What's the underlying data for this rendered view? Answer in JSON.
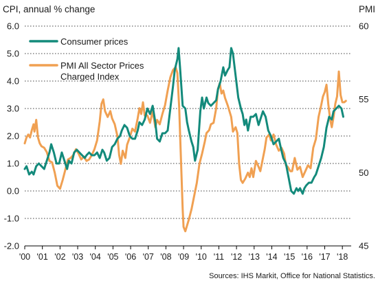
{
  "chart_data": {
    "type": "line",
    "left_axis_title": "CPI, annual % change",
    "right_axis_title": "PMI",
    "left_axis": {
      "ylim": [
        -2.0,
        6.0
      ],
      "ticks": [
        6.0,
        5.0,
        4.0,
        3.0,
        2.0,
        1.0,
        0.0,
        -1.0,
        -2.0
      ],
      "tick_labels": [
        "6.0",
        "5.0",
        "4.0",
        "3.0",
        "2.0",
        "1.0",
        "0.0",
        "-1.0",
        "-2.0"
      ]
    },
    "right_axis": {
      "ylim": [
        45,
        60
      ],
      "ticks": [
        60,
        55,
        50,
        45
      ],
      "tick_labels": [
        "60",
        "55",
        "50",
        "45"
      ]
    },
    "x_axis": {
      "range": [
        2000.0,
        2018.5
      ],
      "tick_years": [
        2000,
        2001,
        2002,
        2003,
        2004,
        2005,
        2006,
        2007,
        2008,
        2009,
        2010,
        2011,
        2012,
        2013,
        2014,
        2015,
        2016,
        2017,
        2018
      ],
      "tick_labels": [
        "'00",
        "'01",
        "'02",
        "'03",
        "'04",
        "'05",
        "'06",
        "'07",
        "'08",
        "'09",
        "'10",
        "'11",
        "'12",
        "'13",
        "'14",
        "'15",
        "'16",
        "'17",
        "'18"
      ]
    },
    "grid": true,
    "legend_position": "top-left",
    "series": [
      {
        "name": "Consumer prices",
        "axis": "left",
        "color": "#138a7b",
        "points": [
          [
            2000.0,
            0.8
          ],
          [
            2000.1,
            0.9
          ],
          [
            2000.25,
            0.6
          ],
          [
            2000.4,
            0.7
          ],
          [
            2000.5,
            0.6
          ],
          [
            2000.65,
            0.9
          ],
          [
            2000.8,
            1.0
          ],
          [
            2000.95,
            0.9
          ],
          [
            2001.1,
            0.8
          ],
          [
            2001.25,
            1.1
          ],
          [
            2001.4,
            1.4
          ],
          [
            2001.5,
            1.7
          ],
          [
            2001.65,
            1.4
          ],
          [
            2001.8,
            1.0
          ],
          [
            2001.95,
            1.0
          ],
          [
            2002.1,
            1.4
          ],
          [
            2002.25,
            1.1
          ],
          [
            2002.4,
            0.8
          ],
          [
            2002.5,
            1.1
          ],
          [
            2002.65,
            1.0
          ],
          [
            2002.8,
            1.4
          ],
          [
            2002.95,
            1.5
          ],
          [
            2003.1,
            1.4
          ],
          [
            2003.25,
            1.3
          ],
          [
            2003.4,
            1.2
          ],
          [
            2003.5,
            1.3
          ],
          [
            2003.65,
            1.4
          ],
          [
            2003.8,
            1.3
          ],
          [
            2003.95,
            1.3
          ],
          [
            2004.1,
            1.4
          ],
          [
            2004.25,
            1.2
          ],
          [
            2004.4,
            1.5
          ],
          [
            2004.5,
            1.4
          ],
          [
            2004.65,
            1.1
          ],
          [
            2004.8,
            1.2
          ],
          [
            2004.95,
            1.6
          ],
          [
            2005.1,
            1.7
          ],
          [
            2005.25,
            1.9
          ],
          [
            2005.4,
            2.0
          ],
          [
            2005.5,
            2.2
          ],
          [
            2005.65,
            2.4
          ],
          [
            2005.8,
            2.3
          ],
          [
            2005.95,
            2.0
          ],
          [
            2006.1,
            1.9
          ],
          [
            2006.25,
            1.9
          ],
          [
            2006.4,
            2.2
          ],
          [
            2006.5,
            2.5
          ],
          [
            2006.65,
            2.4
          ],
          [
            2006.8,
            2.6
          ],
          [
            2006.95,
            3.0
          ],
          [
            2007.1,
            2.8
          ],
          [
            2007.25,
            3.1
          ],
          [
            2007.4,
            2.5
          ],
          [
            2007.5,
            1.9
          ],
          [
            2007.65,
            1.8
          ],
          [
            2007.8,
            2.1
          ],
          [
            2007.95,
            2.1
          ],
          [
            2008.1,
            2.2
          ],
          [
            2008.25,
            3.0
          ],
          [
            2008.4,
            3.8
          ],
          [
            2008.5,
            4.4
          ],
          [
            2008.65,
            4.8
          ],
          [
            2008.72,
            5.2
          ],
          [
            2008.8,
            4.5
          ],
          [
            2008.95,
            3.1
          ],
          [
            2009.1,
            3.0
          ],
          [
            2009.2,
            2.5
          ],
          [
            2009.3,
            2.2
          ],
          [
            2009.45,
            1.8
          ],
          [
            2009.55,
            1.6
          ],
          [
            2009.65,
            1.1
          ],
          [
            2009.8,
            1.5
          ],
          [
            2009.95,
            2.9
          ],
          [
            2010.05,
            3.4
          ],
          [
            2010.15,
            3.0
          ],
          [
            2010.3,
            3.4
          ],
          [
            2010.4,
            3.2
          ],
          [
            2010.55,
            3.1
          ],
          [
            2010.7,
            3.2
          ],
          [
            2010.85,
            3.3
          ],
          [
            2010.95,
            3.7
          ],
          [
            2011.1,
            4.0
          ],
          [
            2011.25,
            4.5
          ],
          [
            2011.35,
            4.2
          ],
          [
            2011.5,
            4.4
          ],
          [
            2011.6,
            4.5
          ],
          [
            2011.7,
            5.2
          ],
          [
            2011.8,
            5.0
          ],
          [
            2011.95,
            4.2
          ],
          [
            2012.1,
            3.4
          ],
          [
            2012.25,
            3.0
          ],
          [
            2012.35,
            2.8
          ],
          [
            2012.45,
            2.4
          ],
          [
            2012.55,
            2.6
          ],
          [
            2012.65,
            2.2
          ],
          [
            2012.8,
            2.7
          ],
          [
            2012.95,
            2.7
          ],
          [
            2013.1,
            2.8
          ],
          [
            2013.25,
            2.4
          ],
          [
            2013.4,
            2.7
          ],
          [
            2013.5,
            2.9
          ],
          [
            2013.65,
            2.7
          ],
          [
            2013.8,
            2.2
          ],
          [
            2013.95,
            2.0
          ],
          [
            2014.1,
            1.7
          ],
          [
            2014.25,
            1.8
          ],
          [
            2014.4,
            1.9
          ],
          [
            2014.5,
            1.6
          ],
          [
            2014.65,
            1.2
          ],
          [
            2014.8,
            1.0
          ],
          [
            2014.95,
            0.5
          ],
          [
            2015.1,
            0.0
          ],
          [
            2015.25,
            -0.1
          ],
          [
            2015.4,
            0.1
          ],
          [
            2015.5,
            0.0
          ],
          [
            2015.6,
            0.1
          ],
          [
            2015.75,
            -0.1
          ],
          [
            2015.85,
            0.1
          ],
          [
            2015.95,
            0.2
          ],
          [
            2016.1,
            0.3
          ],
          [
            2016.25,
            0.3
          ],
          [
            2016.4,
            0.5
          ],
          [
            2016.5,
            0.6
          ],
          [
            2016.65,
            0.9
          ],
          [
            2016.8,
            1.2
          ],
          [
            2016.95,
            1.6
          ],
          [
            2017.1,
            2.3
          ],
          [
            2017.25,
            2.7
          ],
          [
            2017.4,
            2.6
          ],
          [
            2017.5,
            2.9
          ],
          [
            2017.65,
            3.0
          ],
          [
            2017.8,
            3.1
          ],
          [
            2017.95,
            3.0
          ],
          [
            2018.05,
            2.7
          ]
        ]
      },
      {
        "name": "PMI All Sector Prices Charged Index",
        "axis": "right",
        "color": "#f0a052",
        "points": [
          [
            2000.0,
            52.0
          ],
          [
            2000.1,
            52.4
          ],
          [
            2000.2,
            52.6
          ],
          [
            2000.3,
            52.4
          ],
          [
            2000.4,
            52.9
          ],
          [
            2000.5,
            53.3
          ],
          [
            2000.55,
            52.8
          ],
          [
            2000.65,
            53.6
          ],
          [
            2000.75,
            52.4
          ],
          [
            2000.85,
            52.0
          ],
          [
            2000.95,
            51.8
          ],
          [
            2001.1,
            51.7
          ],
          [
            2001.25,
            51.4
          ],
          [
            2001.4,
            50.8
          ],
          [
            2001.55,
            50.7
          ],
          [
            2001.7,
            50.0
          ],
          [
            2001.85,
            49.1
          ],
          [
            2002.0,
            48.9
          ],
          [
            2002.15,
            49.5
          ],
          [
            2002.3,
            50.2
          ],
          [
            2002.45,
            50.9
          ],
          [
            2002.6,
            51.0
          ],
          [
            2002.75,
            51.2
          ],
          [
            2002.9,
            51.6
          ],
          [
            2003.05,
            51.3
          ],
          [
            2003.2,
            50.9
          ],
          [
            2003.35,
            51.1
          ],
          [
            2003.5,
            50.8
          ],
          [
            2003.65,
            50.9
          ],
          [
            2003.8,
            51.2
          ],
          [
            2003.95,
            51.6
          ],
          [
            2004.1,
            52.2
          ],
          [
            2004.25,
            53.5
          ],
          [
            2004.35,
            54.7
          ],
          [
            2004.45,
            55.0
          ],
          [
            2004.55,
            54.2
          ],
          [
            2004.7,
            53.8
          ],
          [
            2004.85,
            54.2
          ],
          [
            2004.95,
            53.7
          ],
          [
            2005.1,
            53.3
          ],
          [
            2005.25,
            52.5
          ],
          [
            2005.35,
            51.2
          ],
          [
            2005.45,
            50.6
          ],
          [
            2005.55,
            51.5
          ],
          [
            2005.7,
            51.0
          ],
          [
            2005.8,
            51.9
          ],
          [
            2005.95,
            52.4
          ],
          [
            2006.1,
            53.0
          ],
          [
            2006.25,
            52.8
          ],
          [
            2006.4,
            53.7
          ],
          [
            2006.5,
            54.4
          ],
          [
            2006.6,
            54.0
          ],
          [
            2006.7,
            54.8
          ],
          [
            2006.8,
            53.9
          ],
          [
            2006.95,
            53.9
          ],
          [
            2007.1,
            53.4
          ],
          [
            2007.25,
            54.2
          ],
          [
            2007.4,
            53.1
          ],
          [
            2007.5,
            53.6
          ],
          [
            2007.65,
            53.3
          ],
          [
            2007.8,
            54.0
          ],
          [
            2007.95,
            54.6
          ],
          [
            2008.1,
            55.6
          ],
          [
            2008.25,
            56.5
          ],
          [
            2008.4,
            57.0
          ],
          [
            2008.55,
            57.2
          ],
          [
            2008.65,
            56.8
          ],
          [
            2008.75,
            54.5
          ],
          [
            2008.85,
            51.0
          ],
          [
            2008.95,
            47.5
          ],
          [
            2009.0,
            46.3
          ],
          [
            2009.1,
            46.0
          ],
          [
            2009.2,
            46.4
          ],
          [
            2009.3,
            46.8
          ],
          [
            2009.45,
            47.5
          ],
          [
            2009.6,
            48.4
          ],
          [
            2009.75,
            49.3
          ],
          [
            2009.9,
            50.6
          ],
          [
            2010.05,
            51.3
          ],
          [
            2010.2,
            52.1
          ],
          [
            2010.3,
            52.7
          ],
          [
            2010.45,
            52.9
          ],
          [
            2010.55,
            53.3
          ],
          [
            2010.7,
            53.4
          ],
          [
            2010.85,
            54.4
          ],
          [
            2010.95,
            55.7
          ],
          [
            2011.05,
            56.1
          ],
          [
            2011.15,
            55.4
          ],
          [
            2011.25,
            55.6
          ],
          [
            2011.35,
            55.1
          ],
          [
            2011.5,
            54.6
          ],
          [
            2011.6,
            54.2
          ],
          [
            2011.7,
            53.8
          ],
          [
            2011.8,
            52.8
          ],
          [
            2011.95,
            53.1
          ],
          [
            2012.05,
            52.7
          ],
          [
            2012.15,
            50.6
          ],
          [
            2012.25,
            49.5
          ],
          [
            2012.35,
            49.3
          ],
          [
            2012.5,
            49.6
          ],
          [
            2012.65,
            50.0
          ],
          [
            2012.75,
            49.7
          ],
          [
            2012.85,
            50.3
          ],
          [
            2012.95,
            49.7
          ],
          [
            2013.1,
            50.8
          ],
          [
            2013.25,
            50.4
          ],
          [
            2013.35,
            50.1
          ],
          [
            2013.5,
            51.0
          ],
          [
            2013.6,
            51.6
          ],
          [
            2013.7,
            52.4
          ],
          [
            2013.85,
            52.6
          ],
          [
            2013.95,
            52.2
          ],
          [
            2014.1,
            52.6
          ],
          [
            2014.25,
            51.9
          ],
          [
            2014.4,
            51.5
          ],
          [
            2014.55,
            51.7
          ],
          [
            2014.7,
            51.3
          ],
          [
            2014.8,
            50.5
          ],
          [
            2014.9,
            50.4
          ],
          [
            2015.05,
            50.1
          ],
          [
            2015.15,
            50.1
          ],
          [
            2015.3,
            51.0
          ],
          [
            2015.45,
            50.2
          ],
          [
            2015.6,
            50.4
          ],
          [
            2015.75,
            49.7
          ],
          [
            2015.9,
            50.1
          ],
          [
            2016.05,
            50.5
          ],
          [
            2016.2,
            50.3
          ],
          [
            2016.35,
            51.7
          ],
          [
            2016.5,
            52.3
          ],
          [
            2016.65,
            53.8
          ],
          [
            2016.8,
            54.6
          ],
          [
            2016.9,
            55.2
          ],
          [
            2017.0,
            55.5
          ],
          [
            2017.1,
            56.0
          ],
          [
            2017.2,
            54.7
          ],
          [
            2017.3,
            53.7
          ],
          [
            2017.4,
            53.1
          ],
          [
            2017.5,
            53.8
          ],
          [
            2017.6,
            54.7
          ],
          [
            2017.7,
            55.2
          ],
          [
            2017.8,
            56.9
          ],
          [
            2017.9,
            55.3
          ],
          [
            2018.0,
            54.8
          ],
          [
            2018.1,
            54.8
          ],
          [
            2018.2,
            54.9
          ]
        ]
      }
    ],
    "source": "Sources: IHS Markit, Office for National Statistics."
  }
}
